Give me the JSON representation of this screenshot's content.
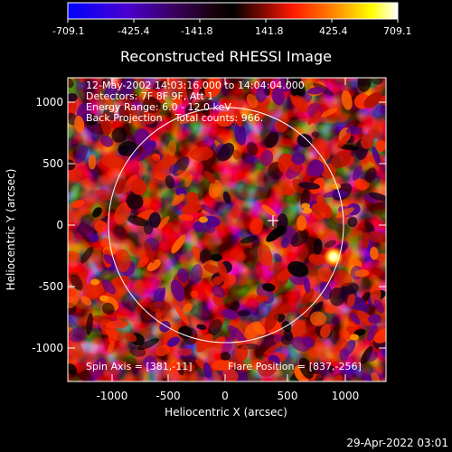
{
  "colorbar": {
    "ticks": [
      "-709.1",
      "-425.4",
      "-141.8",
      "141.8",
      "425.4",
      "709.1"
    ]
  },
  "title": "Reconstructed RHESSI Image",
  "info": {
    "line1": "12-May-2002 14:03:16.000 to 14:04:04.000",
    "line2": "Detectors: 7F 8F 9F, Att 1",
    "line3": "Energy Range: 6.0 - 12.0 keV",
    "line4": "Back Projection    Total counts: 966."
  },
  "footer_left": "Spin Axis = [381,-11]",
  "footer_right": "Flare Position = [837,-256]",
  "axes": {
    "xlabel": "Heliocentric X (arcsec)",
    "ylabel": "Heliocentric Y (arcsec)",
    "xticks": [
      "-1000",
      "-500",
      "0",
      "500",
      "1000"
    ],
    "yticks": [
      "1000",
      "500",
      "0",
      "-500",
      "-1000"
    ]
  },
  "timestamp": "29-Apr-2022 03:01",
  "colors": {
    "colorbar": [
      "#0000ff",
      "#5000c0",
      "#400060",
      "#200010",
      "#000000",
      "#a01000",
      "#ff2000",
      "#ff8000",
      "#ffff00",
      "#ffffff"
    ]
  }
}
